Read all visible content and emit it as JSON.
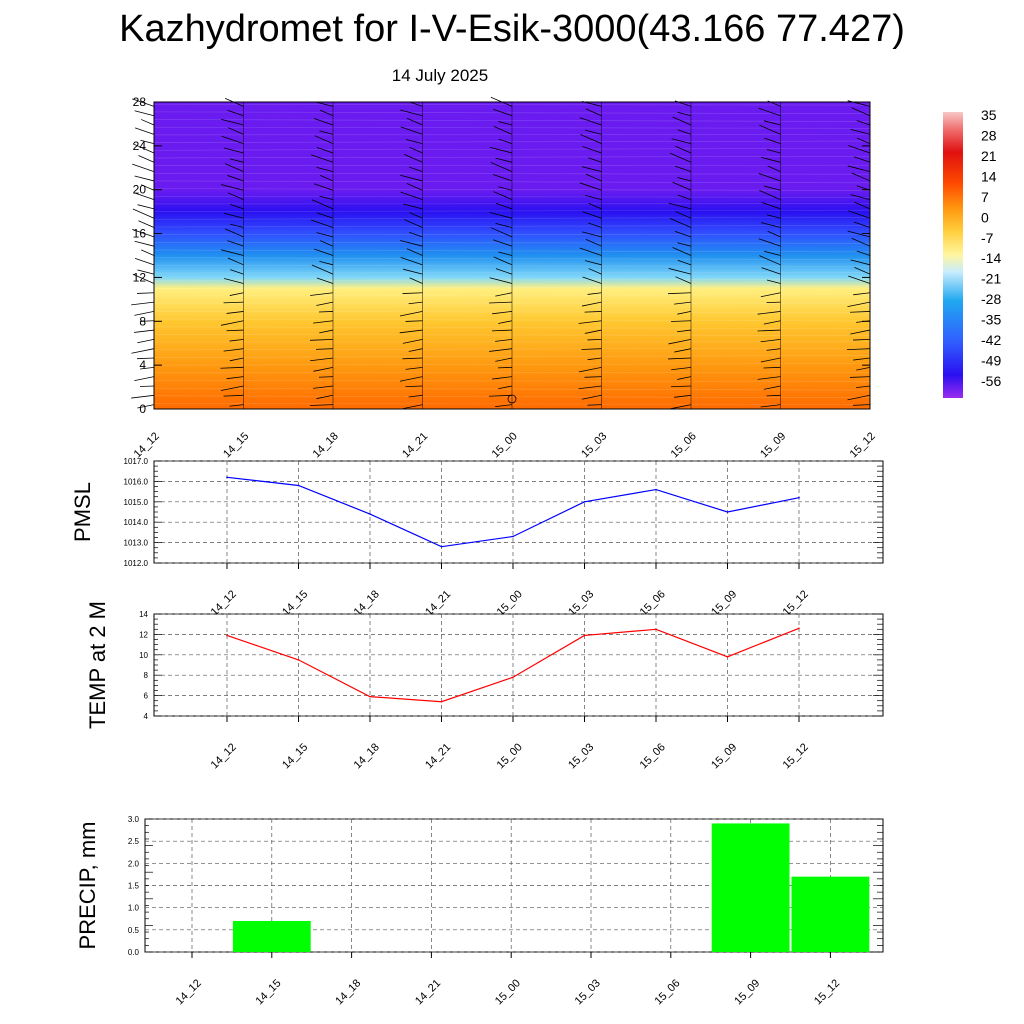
{
  "page": {
    "title": "Kazhydromet for I-V-Esik-3000(43.166 77.427)",
    "subtitle": "14 July 2025"
  },
  "colors": {
    "pmsl_line": "#0000ff",
    "temp_line": "#ff0000",
    "precip_bar": "#00ff00",
    "grid": "#555555"
  },
  "chart_data": [
    {
      "type": "heatmap",
      "name": "vertical-temperature-wind-section",
      "x_ticks": [
        "14_12",
        "14_15",
        "14_18",
        "14_21",
        "15_00",
        "15_03",
        "15_06",
        "15_09",
        "15_12"
      ],
      "y_ticks": [
        "0",
        "4",
        "8",
        "12",
        "16",
        "20",
        "24",
        "28"
      ],
      "ylim": [
        0,
        28
      ],
      "colorbar_labels": [
        "35",
        "28",
        "21",
        "14",
        "7",
        "0",
        "-7",
        "-14",
        "-21",
        "-28",
        "-35",
        "-42",
        "-49",
        "-56"
      ],
      "temperature_profile": [
        {
          "height": 0,
          "value": 14
        },
        {
          "height": 4,
          "value": 7
        },
        {
          "height": 8,
          "value": 0
        },
        {
          "height": 11,
          "value": -7
        },
        {
          "height": 12,
          "value": -21
        },
        {
          "height": 14,
          "value": -35
        },
        {
          "height": 16,
          "value": -42
        },
        {
          "height": 18,
          "value": -49
        },
        {
          "height": 20,
          "value": -56
        },
        {
          "height": 22,
          "value": -56
        },
        {
          "height": 28,
          "value": -56
        }
      ]
    },
    {
      "type": "line",
      "name": "pmsl",
      "ylabel": "PMSL",
      "x_ticks": [
        "14_12",
        "14_15",
        "14_18",
        "14_21",
        "15_00",
        "15_03",
        "15_06",
        "15_09",
        "15_12"
      ],
      "y_ticks": [
        "1012.0",
        "1013.0",
        "1014.0",
        "1015.0",
        "1016.0",
        "1017.0"
      ],
      "ylim": [
        1012,
        1017
      ],
      "values": [
        1016.2,
        1015.8,
        1014.4,
        1012.8,
        1013.3,
        1015.0,
        1015.6,
        1014.5,
        1015.2
      ],
      "grid": true
    },
    {
      "type": "line",
      "name": "temp-2m",
      "ylabel": "TEMP at 2 M",
      "x_ticks": [
        "14_12",
        "14_15",
        "14_18",
        "14_21",
        "15_00",
        "15_03",
        "15_06",
        "15_09",
        "15_12"
      ],
      "y_ticks": [
        "4",
        "6",
        "8",
        "10",
        "12",
        "14"
      ],
      "ylim": [
        4,
        14
      ],
      "values": [
        11.9,
        9.5,
        5.9,
        5.4,
        7.8,
        11.9,
        12.5,
        9.8,
        12.6
      ],
      "grid": true
    },
    {
      "type": "bar",
      "name": "precip",
      "ylabel": "PRECIP, mm",
      "x_ticks": [
        "14_12",
        "14_15",
        "14_18",
        "14_21",
        "15_00",
        "15_03",
        "15_06",
        "15_09",
        "15_12"
      ],
      "y_ticks": [
        "0.0",
        "0.5",
        "1.0",
        "1.5",
        "2.0",
        "2.5",
        "3.0"
      ],
      "ylim": [
        0,
        3
      ],
      "values": [
        0,
        0.7,
        0,
        0,
        0,
        0,
        0,
        2.9,
        1.7
      ],
      "grid": true
    }
  ]
}
